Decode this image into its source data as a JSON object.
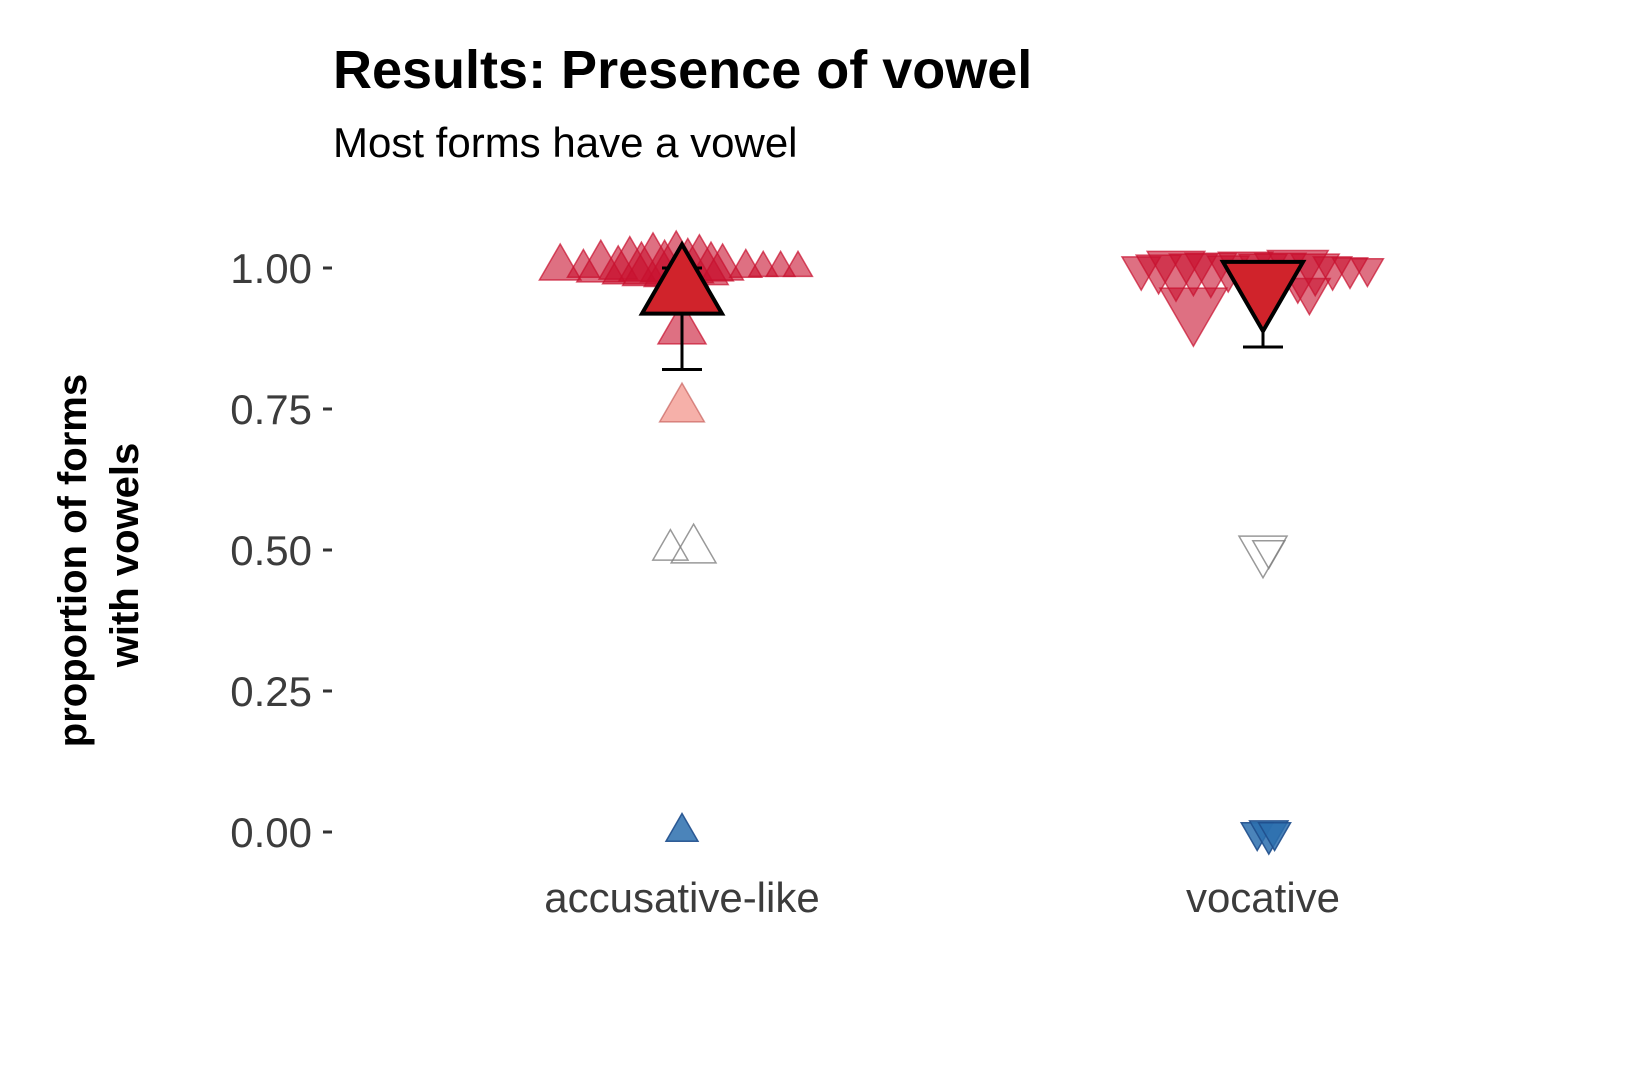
{
  "chart_data": {
    "type": "scatter",
    "title": "Results: Presence of vowel",
    "subtitle": "Most forms have a vowel",
    "ylabel_lines": [
      "proportion of forms",
      "with vowels"
    ],
    "categories": [
      "accusative-like",
      "vocative"
    ],
    "ylim": [
      0,
      1
    ],
    "yticks": [
      0,
      0.25,
      0.5,
      0.75,
      1
    ],
    "ytick_labels": [
      "0.00",
      "0.25",
      "0.50",
      "0.75",
      "1.00"
    ],
    "grid": false,
    "legend": "none",
    "colors": {
      "high": "#c8102e",
      "mid": "#f4a29a",
      "low": "#2c6fae",
      "summary_fill": "#d0232b",
      "summary_stroke": "#000000"
    },
    "series": [
      {
        "category": "accusative-like",
        "shape": "triangle-up",
        "points": [
          {
            "x_offset": -0.21,
            "y": 1.0,
            "size": 1.3
          },
          {
            "x_offset": -0.17,
            "y": 1.0,
            "size": 1.0
          },
          {
            "x_offset": -0.14,
            "y": 1.0,
            "size": 1.5
          },
          {
            "x_offset": -0.11,
            "y": 1.0,
            "size": 1.2
          },
          {
            "x_offset": -0.09,
            "y": 1.0,
            "size": 1.7
          },
          {
            "x_offset": -0.07,
            "y": 1.0,
            "size": 1.4
          },
          {
            "x_offset": -0.05,
            "y": 1.0,
            "size": 1.9
          },
          {
            "x_offset": -0.03,
            "y": 1.0,
            "size": 1.5
          },
          {
            "x_offset": -0.01,
            "y": 1.0,
            "size": 2.0
          },
          {
            "x_offset": 0.01,
            "y": 1.0,
            "size": 1.6
          },
          {
            "x_offset": 0.03,
            "y": 1.0,
            "size": 1.8
          },
          {
            "x_offset": 0.05,
            "y": 1.0,
            "size": 1.4
          },
          {
            "x_offset": 0.07,
            "y": 1.0,
            "size": 1.3
          },
          {
            "x_offset": 0.11,
            "y": 1.0,
            "size": 1.0
          },
          {
            "x_offset": 0.14,
            "y": 1.0,
            "size": 0.9
          },
          {
            "x_offset": 0.17,
            "y": 1.0,
            "size": 0.9
          },
          {
            "x_offset": 0.2,
            "y": 1.0,
            "size": 0.9
          },
          {
            "x_offset": 0.0,
            "y": 0.89,
            "size": 1.5
          },
          {
            "x_offset": 0.0,
            "y": 0.75,
            "size": 1.4
          },
          {
            "x_offset": -0.02,
            "y": 0.5,
            "size": 1.1
          },
          {
            "x_offset": 0.02,
            "y": 0.5,
            "size": 1.4
          },
          {
            "x_offset": 0.0,
            "y": 0.0,
            "size": 1.0
          }
        ],
        "summary": {
          "mean": 0.96,
          "lower": 0.82,
          "upper": 1.0
        }
      },
      {
        "category": "vocative",
        "shape": "triangle-down",
        "points": [
          {
            "x_offset": -0.21,
            "y": 1.0,
            "size": 1.2
          },
          {
            "x_offset": -0.18,
            "y": 1.0,
            "size": 1.4
          },
          {
            "x_offset": -0.15,
            "y": 1.0,
            "size": 1.8
          },
          {
            "x_offset": -0.12,
            "y": 1.0,
            "size": 1.5
          },
          {
            "x_offset": -0.09,
            "y": 1.0,
            "size": 1.6
          },
          {
            "x_offset": -0.06,
            "y": 1.0,
            "size": 1.3
          },
          {
            "x_offset": -0.03,
            "y": 1.0,
            "size": 1.7
          },
          {
            "x_offset": 0.0,
            "y": 1.0,
            "size": 1.5
          },
          {
            "x_offset": 0.03,
            "y": 1.0,
            "size": 1.6
          },
          {
            "x_offset": 0.06,
            "y": 1.0,
            "size": 1.9
          },
          {
            "x_offset": 0.09,
            "y": 1.0,
            "size": 1.5
          },
          {
            "x_offset": 0.12,
            "y": 1.0,
            "size": 1.2
          },
          {
            "x_offset": 0.15,
            "y": 1.0,
            "size": 1.1
          },
          {
            "x_offset": 0.18,
            "y": 1.0,
            "size": 1.0
          },
          {
            "x_offset": -0.12,
            "y": 0.93,
            "size": 2.1
          },
          {
            "x_offset": 0.08,
            "y": 0.96,
            "size": 1.3
          },
          {
            "x_offset": 0.0,
            "y": 0.5,
            "size": 1.5
          },
          {
            "x_offset": 0.01,
            "y": 0.5,
            "size": 1.0
          },
          {
            "x_offset": -0.01,
            "y": 0.0,
            "size": 1.0
          },
          {
            "x_offset": 0.01,
            "y": 0.0,
            "size": 1.2
          },
          {
            "x_offset": 0.02,
            "y": 0.0,
            "size": 1.0
          }
        ],
        "summary": {
          "mean": 0.97,
          "lower": 0.86,
          "upper": 1.0
        }
      }
    ]
  }
}
